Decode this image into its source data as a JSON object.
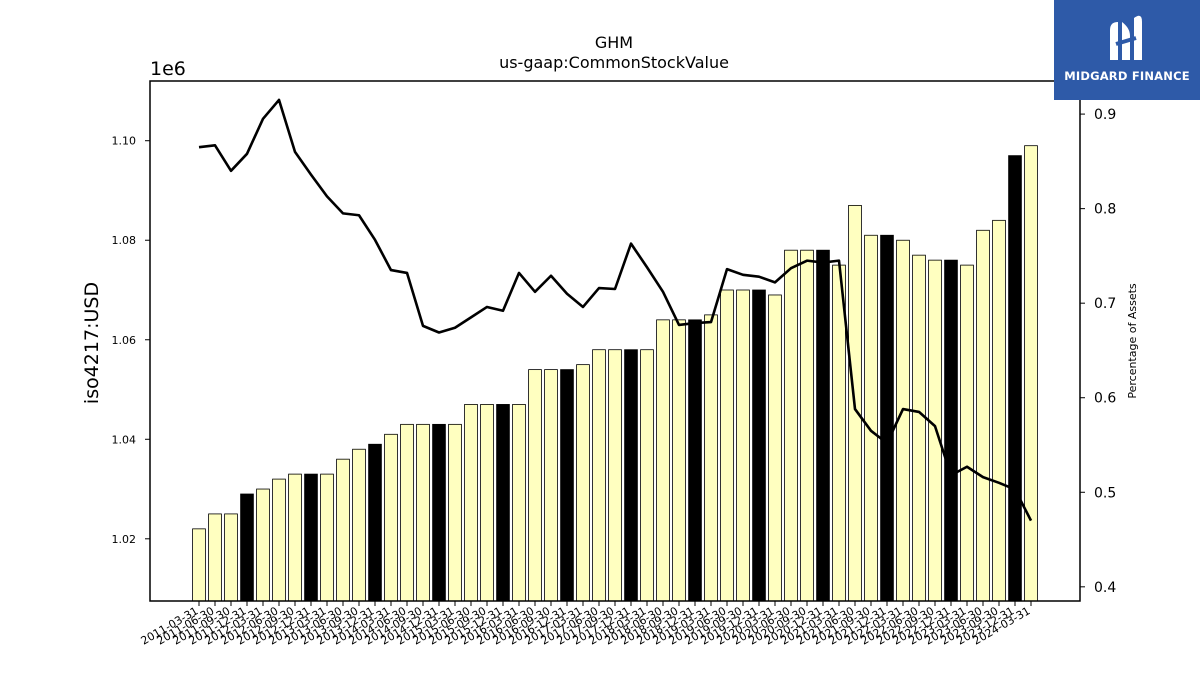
{
  "chart_data": {
    "type": "bar+line",
    "title": "GHM",
    "subtitle": "us-gaap:CommonStockValue",
    "ylabel": "iso4217:USD",
    "y2label": "Percentage of Assets",
    "yscale_label": "1e6",
    "ylim": [
      1007500,
      1112000
    ],
    "y2lim": [
      0.385,
      0.935
    ],
    "yticks": [
      "1.02",
      "1.04",
      "1.06",
      "1.08",
      "1.10"
    ],
    "yticks_values": [
      1020000,
      1040000,
      1060000,
      1080000,
      1100000
    ],
    "y2ticks": [
      "0.4",
      "0.5",
      "0.6",
      "0.7",
      "0.8",
      "0.9"
    ],
    "y2ticks_values": [
      0.4,
      0.5,
      0.6,
      0.7,
      0.8,
      0.9
    ],
    "grid": false,
    "colors": {
      "bar": "#ffffc0",
      "bar_highlight": "#000000",
      "line": "#000000"
    },
    "categories": [
      "2011-03-31",
      "2011-06-30",
      "2011-09-30",
      "2011-12-31",
      "2012-03-31",
      "2012-06-30",
      "2012-09-30",
      "2012-12-31",
      "2013-03-31",
      "2013-06-30",
      "2013-09-30",
      "2013-12-31",
      "2014-03-31",
      "2014-06-30",
      "2014-09-30",
      "2014-12-31",
      "2015-03-31",
      "2015-06-30",
      "2015-09-30",
      "2015-12-31",
      "2016-03-31",
      "2016-06-30",
      "2016-09-30",
      "2016-12-31",
      "2017-03-31",
      "2017-06-30",
      "2017-09-30",
      "2017-12-31",
      "2018-03-31",
      "2018-06-30",
      "2018-09-30",
      "2018-12-31",
      "2019-03-31",
      "2019-06-30",
      "2019-09-30",
      "2019-12-31",
      "2020-03-31",
      "2020-06-30",
      "2020-09-30",
      "2020-12-31",
      "2021-03-31",
      "2021-06-30",
      "2021-09-30",
      "2021-12-31",
      "2022-03-31",
      "2022-06-30",
      "2022-09-30",
      "2022-12-31",
      "2023-03-31",
      "2023-06-30",
      "2023-09-30",
      "2023-12-31",
      "2024-03-31"
    ],
    "series": [
      {
        "type": "bar",
        "values": [
          1022000,
          1025000,
          1025000,
          1029000,
          1030000,
          1032000,
          1033000,
          1033000,
          1033000,
          1036000,
          1038000,
          1039000,
          1041000,
          1043000,
          1043000,
          1043000,
          1043000,
          1047000,
          1047000,
          1047000,
          1047000,
          1054000,
          1054000,
          1054000,
          1055000,
          1058000,
          1058000,
          1058000,
          1058000,
          1064000,
          1064000,
          1064000,
          1065000,
          1070000,
          1070000,
          1070000,
          1069000,
          1078000,
          1078000,
          1078000,
          1075000,
          1087000,
          1081000,
          1081000,
          1080000,
          1077000,
          1076000,
          1076000,
          1075000,
          1082000,
          1084000,
          1097000,
          1099000
        ],
        "highlight": [
          false,
          false,
          false,
          true,
          false,
          false,
          false,
          true,
          false,
          false,
          false,
          true,
          false,
          false,
          false,
          true,
          false,
          false,
          false,
          true,
          false,
          false,
          false,
          true,
          false,
          false,
          false,
          true,
          false,
          false,
          false,
          true,
          false,
          false,
          false,
          true,
          false,
          false,
          false,
          true,
          false,
          false,
          false,
          true,
          false,
          false,
          false,
          true,
          false,
          false,
          false,
          true,
          false
        ]
      },
      {
        "type": "line",
        "axis": "right",
        "values": [
          0.865,
          0.867,
          0.84,
          0.858,
          0.895,
          0.915,
          0.86,
          0.836,
          0.813,
          0.795,
          0.793,
          0.767,
          0.735,
          0.732,
          0.676,
          0.669,
          0.674,
          0.685,
          0.696,
          0.692,
          0.732,
          0.712,
          0.729,
          0.71,
          0.696,
          0.716,
          0.715,
          0.763,
          0.738,
          0.712,
          0.677,
          0.679,
          0.68,
          0.736,
          0.73,
          0.728,
          0.722,
          0.737,
          0.745,
          0.743,
          0.745,
          0.588,
          0.565,
          0.552,
          0.588,
          0.585,
          0.57,
          0.518,
          0.527,
          0.516,
          0.51,
          0.503,
          0.47
        ]
      }
    ]
  },
  "logo": {
    "text": "MIDGARD FINANCE",
    "icon": "midgard-logo-icon"
  }
}
